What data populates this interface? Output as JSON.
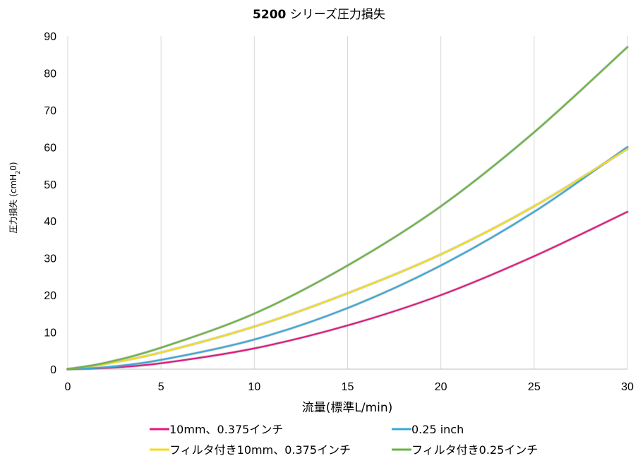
{
  "chart_data": {
    "type": "line",
    "title_bold": "5200",
    "title_rest": " シリーズ圧力損失",
    "xlabel": "流量(標準L/min)",
    "ylabel_main": "圧力損失",
    "ylabel_unit_pre": "(cmH",
    "ylabel_unit_sub": "2",
    "ylabel_unit_post": "0)",
    "xlim": [
      0,
      30
    ],
    "ylim": [
      0,
      90
    ],
    "x_ticks": [
      0,
      5,
      10,
      15,
      20,
      25,
      30
    ],
    "y_ticks": [
      0,
      10,
      20,
      30,
      40,
      50,
      60,
      70,
      80,
      90
    ],
    "grid": "vertical",
    "legend_position": "bottom",
    "x": [
      0,
      2,
      5,
      10,
      15,
      20,
      25,
      30
    ],
    "series": [
      {
        "name": "10mm、0.375インチ",
        "color": "#e3197f",
        "values": [
          0,
          0.3,
          1.6,
          5.6,
          11.8,
          20.0,
          30.5,
          42.5
        ]
      },
      {
        "name": "0.25 inch",
        "color": "#3aa8d8",
        "values": [
          0,
          0.5,
          2.5,
          8.0,
          16.5,
          28.0,
          42.5,
          60.0
        ]
      },
      {
        "name": "フィルタ付き10mm、0.375インチ",
        "color": "#f0dc1f",
        "values": [
          0,
          1.4,
          4.5,
          11.5,
          20.5,
          31.0,
          44.0,
          59.5
        ]
      },
      {
        "name": "フィルタ付き0.25インチ",
        "color": "#6ab443",
        "values": [
          0,
          1.7,
          5.8,
          15.0,
          28.0,
          44.0,
          64.0,
          87.0
        ]
      }
    ]
  }
}
